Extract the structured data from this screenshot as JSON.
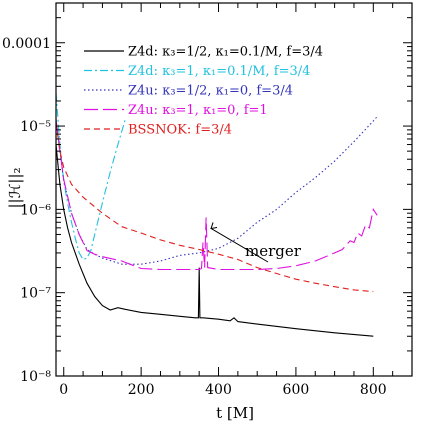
{
  "chart_data": {
    "type": "line",
    "xlabel": "t [M]",
    "ylabel": "||ℋ||₂",
    "xlim": [
      -20,
      900
    ],
    "ylim": [
      1e-08,
      0.0003
    ],
    "yscale": "log",
    "x_ticks": [
      0,
      200,
      400,
      600,
      800
    ],
    "x_tick_labels": [
      "0",
      "200",
      "400",
      "600",
      "800"
    ],
    "y_ticks": [
      1e-08,
      1e-07,
      1e-06,
      1e-05,
      0.0001
    ],
    "y_tick_labels": [
      "10⁻⁸",
      "10⁻⁷",
      "10⁻⁶",
      "10⁻⁵",
      "0.0001"
    ],
    "legend_position": "top",
    "annotation": {
      "text": "merger",
      "x": 360,
      "y": 5e-07
    },
    "series": [
      {
        "name": "Z4d: κ₃=1/2, κ₁=0.1/M, f=3/4",
        "color": "#000000",
        "dash": "",
        "x": [
          -20,
          -10,
          0,
          10,
          20,
          40,
          60,
          80,
          100,
          120,
          140,
          160,
          200,
          250,
          300,
          340,
          348,
          350,
          352,
          356,
          360,
          400,
          430,
          440,
          450,
          500,
          600,
          700,
          800
        ],
        "y": [
          6e-06,
          2e-06,
          1e-06,
          6e-07,
          4e-07,
          2.2e-07,
          1.3e-07,
          9e-08,
          7e-08,
          6.2e-08,
          6.6e-08,
          6.3e-08,
          5.8e-08,
          5.5e-08,
          5.2e-08,
          5e-08,
          5e-08,
          2e-07,
          5e-08,
          5e-08,
          5e-08,
          4.8e-08,
          4.6e-08,
          5e-08,
          4.5e-08,
          4.2e-08,
          3.7e-08,
          3.3e-08,
          3e-08
        ]
      },
      {
        "name": "Z4d: κ₃=1,     κ₁=0.1/M, f=3/4",
        "color": "#22c1e0",
        "dash": "8,3,2,3",
        "x": [
          -20,
          -10,
          0,
          10,
          20,
          30,
          40,
          50,
          60,
          70,
          80,
          100,
          120,
          140,
          160
        ],
        "y": [
          2.5e-05,
          6e-06,
          2.2e-06,
          1.2e-06,
          7e-07,
          4.5e-07,
          3e-07,
          2.5e-07,
          2.6e-07,
          3.2e-07,
          5e-07,
          1.2e-06,
          2.8e-06,
          6e-06,
          1.25e-05
        ]
      },
      {
        "name": "Z4u: κ₃=1/2, κ₁=0,      f=3/4",
        "color": "#3333bb",
        "dash": "1.5,2.5",
        "x": [
          -20,
          -10,
          0,
          20,
          40,
          60,
          80,
          100,
          150,
          200,
          250,
          300,
          350,
          400,
          450,
          500,
          550,
          600,
          650,
          700,
          750,
          800,
          810
        ],
        "y": [
          1.2e-05,
          5e-06,
          2.2e-06,
          9e-07,
          5e-07,
          3.3e-07,
          2.9e-07,
          2.6e-07,
          2.2e-07,
          2.2e-07,
          2.4e-07,
          2.8e-07,
          3e-07,
          3.4e-07,
          4.5e-07,
          7e-07,
          1e-06,
          1.6e-06,
          2.4e-06,
          3.8e-06,
          6.5e-06,
          1.15e-05,
          1.3e-05
        ]
      },
      {
        "name": "Z4u: κ₃=1,     κ₁=0,      f=1",
        "color": "#e010e0",
        "dash": "14,5",
        "x": [
          -20,
          -10,
          0,
          20,
          40,
          60,
          80,
          100,
          150,
          200,
          250,
          300,
          350,
          356,
          360,
          364,
          368,
          372,
          400,
          450,
          500,
          550,
          600,
          650,
          700,
          720,
          740,
          750,
          760,
          770,
          780,
          790,
          800,
          810
        ],
        "y": [
          1.2e-05,
          5e-06,
          2.3e-06,
          9e-07,
          5e-07,
          3.2e-07,
          2.9e-07,
          2.7e-07,
          2.4e-07,
          1.95e-07,
          1.9e-07,
          1.9e-07,
          1.9e-07,
          1.95e-07,
          4e-07,
          2e-07,
          8e-07,
          2e-07,
          1.9e-07,
          1.9e-07,
          1.9e-07,
          1.95e-07,
          2.1e-07,
          2.4e-07,
          3e-07,
          3.3e-07,
          4.2e-07,
          4e-07,
          5.2e-07,
          4.8e-07,
          6.5e-07,
          6e-07,
          1e-06,
          8.5e-07
        ]
      },
      {
        "name": "BSSNOK: f=3/4",
        "color": "#e02020",
        "dash": "6,4",
        "x": [
          -20,
          -10,
          0,
          20,
          50,
          100,
          150,
          200,
          250,
          300,
          350,
          400,
          450,
          500,
          550,
          600,
          650,
          700,
          750,
          800
        ],
        "y": [
          1.1e-05,
          5e-06,
          3.2e-06,
          2e-06,
          1.4e-06,
          9e-07,
          6.2e-07,
          5.2e-07,
          4.3e-07,
          3.7e-07,
          3.3e-07,
          2.9e-07,
          2.5e-07,
          2e-07,
          1.7e-07,
          1.45e-07,
          1.3e-07,
          1.18e-07,
          1.08e-07,
          1.03e-07
        ]
      }
    ]
  }
}
